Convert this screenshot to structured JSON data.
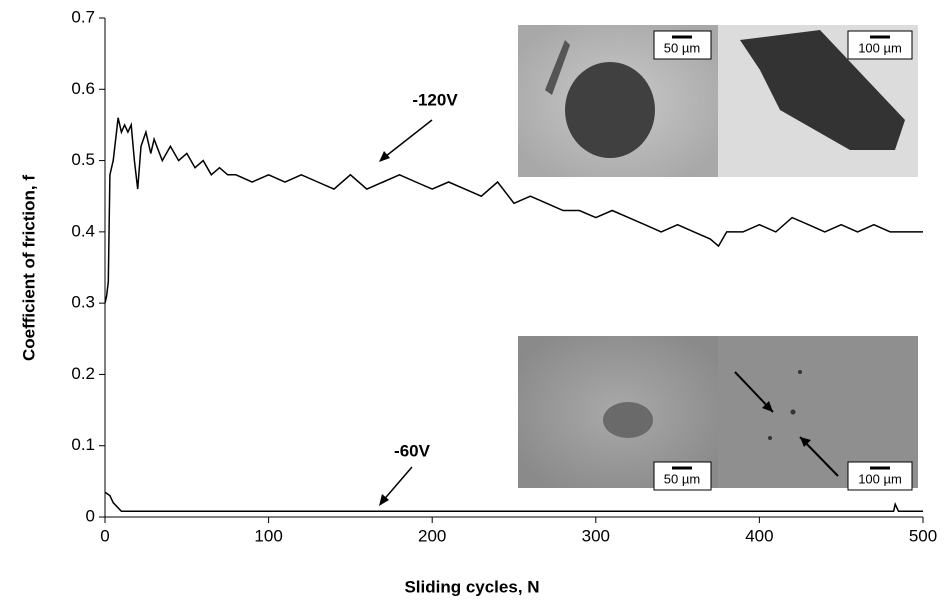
{
  "chart_data": {
    "type": "line",
    "xlabel": "Sliding cycles, N",
    "ylabel": "Coefficient of friction, f",
    "xlim": [
      0,
      500
    ],
    "xticks": [
      0,
      100,
      200,
      300,
      400,
      500
    ],
    "ylim": [
      0,
      0.7
    ],
    "yticks": [
      0,
      0.1,
      0.2,
      0.3,
      0.4,
      0.5,
      0.6,
      0.7
    ],
    "grid": false,
    "series": [
      {
        "name": "-120V",
        "color": "#000000",
        "x": [
          0,
          1,
          2,
          3,
          5,
          7,
          8,
          10,
          12,
          14,
          16,
          18,
          20,
          22,
          25,
          28,
          30,
          35,
          40,
          45,
          50,
          55,
          60,
          65,
          70,
          75,
          80,
          90,
          100,
          110,
          120,
          130,
          140,
          150,
          160,
          170,
          180,
          190,
          200,
          210,
          220,
          230,
          240,
          250,
          260,
          270,
          280,
          290,
          300,
          310,
          320,
          330,
          340,
          350,
          360,
          370,
          375,
          380,
          390,
          400,
          410,
          420,
          430,
          440,
          450,
          460,
          470,
          480,
          490,
          500
        ],
        "values": [
          0.3,
          0.31,
          0.33,
          0.48,
          0.5,
          0.54,
          0.56,
          0.54,
          0.55,
          0.54,
          0.55,
          0.5,
          0.46,
          0.52,
          0.54,
          0.51,
          0.53,
          0.5,
          0.52,
          0.5,
          0.51,
          0.49,
          0.5,
          0.48,
          0.49,
          0.48,
          0.48,
          0.47,
          0.48,
          0.47,
          0.48,
          0.47,
          0.46,
          0.48,
          0.46,
          0.47,
          0.48,
          0.47,
          0.46,
          0.47,
          0.46,
          0.45,
          0.47,
          0.44,
          0.45,
          0.44,
          0.43,
          0.43,
          0.42,
          0.43,
          0.42,
          0.41,
          0.4,
          0.41,
          0.4,
          0.39,
          0.38,
          0.4,
          0.4,
          0.41,
          0.4,
          0.42,
          0.41,
          0.4,
          0.41,
          0.4,
          0.41,
          0.4,
          0.4,
          0.4
        ]
      },
      {
        "name": "-60V",
        "color": "#000000",
        "x": [
          0,
          3,
          5,
          10,
          482,
          483,
          485,
          500
        ],
        "values": [
          0.035,
          0.03,
          0.02,
          0.008,
          0.008,
          0.018,
          0.008,
          0.008
        ]
      }
    ],
    "scale_labels": [
      "50 µm",
      "100 µm",
      "50 µm",
      "100 µm"
    ]
  }
}
